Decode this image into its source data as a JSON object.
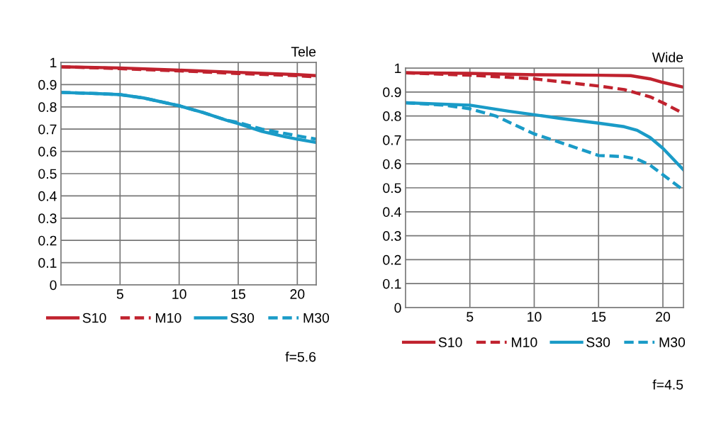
{
  "chart_data": [
    {
      "type": "line",
      "title": "Tele",
      "annotations": [
        "f=5.6"
      ],
      "xlim": [
        0,
        21.6
      ],
      "xticks": [
        5,
        10,
        15,
        20
      ],
      "ylim": [
        0,
        1
      ],
      "yticks": [
        0,
        0.1,
        0.2,
        0.3,
        0.4,
        0.5,
        0.6,
        0.7,
        0.8,
        0.9,
        1
      ],
      "grid": true,
      "legend": "bottom",
      "series": [
        {
          "name": "S10",
          "color": "#c0222e",
          "line_style": "solid",
          "x": [
            0,
            5,
            10,
            15,
            20,
            21.6
          ],
          "values": [
            0.98,
            0.975,
            0.965,
            0.955,
            0.945,
            0.94
          ]
        },
        {
          "name": "M10",
          "color": "#c0222e",
          "line_style": "dashed",
          "x": [
            0,
            5,
            10,
            15,
            20,
            21.6
          ],
          "values": [
            0.98,
            0.972,
            0.962,
            0.95,
            0.94,
            0.935
          ]
        },
        {
          "name": "S30",
          "color": "#1a9bc7",
          "line_style": "solid",
          "x": [
            0,
            3,
            5,
            7,
            10,
            12,
            14,
            15,
            17,
            19,
            20,
            21.6
          ],
          "values": [
            0.865,
            0.86,
            0.855,
            0.84,
            0.805,
            0.775,
            0.74,
            0.725,
            0.69,
            0.665,
            0.655,
            0.64
          ]
        },
        {
          "name": "M30",
          "color": "#1a9bc7",
          "line_style": "dashed",
          "x": [
            0,
            3,
            5,
            7,
            10,
            12,
            14,
            15,
            17,
            19,
            20,
            21.6
          ],
          "values": [
            0.865,
            0.86,
            0.855,
            0.84,
            0.805,
            0.775,
            0.74,
            0.73,
            0.7,
            0.68,
            0.67,
            0.655
          ]
        }
      ]
    },
    {
      "type": "line",
      "title": "Wide",
      "annotations": [
        "f=4.5"
      ],
      "xlim": [
        0,
        21.6
      ],
      "xticks": [
        5,
        10,
        15,
        20
      ],
      "ylim": [
        0,
        1
      ],
      "yticks": [
        0,
        0.1,
        0.2,
        0.3,
        0.4,
        0.5,
        0.6,
        0.7,
        0.8,
        0.9,
        1
      ],
      "grid": true,
      "legend": "bottom",
      "series": [
        {
          "name": "S10",
          "color": "#c0222e",
          "line_style": "solid",
          "x": [
            0,
            5,
            10,
            15,
            17.5,
            19,
            20,
            21.6
          ],
          "values": [
            0.98,
            0.978,
            0.972,
            0.97,
            0.968,
            0.955,
            0.94,
            0.92
          ]
        },
        {
          "name": "M10",
          "color": "#c0222e",
          "line_style": "dashed",
          "x": [
            0,
            5,
            10,
            15,
            17,
            19,
            20,
            21.6
          ],
          "values": [
            0.98,
            0.97,
            0.955,
            0.925,
            0.91,
            0.88,
            0.855,
            0.81
          ]
        },
        {
          "name": "S30",
          "color": "#1a9bc7",
          "line_style": "solid",
          "x": [
            0,
            5,
            8,
            10,
            12,
            15,
            17,
            18,
            19,
            20,
            21.6
          ],
          "values": [
            0.855,
            0.845,
            0.82,
            0.805,
            0.79,
            0.77,
            0.755,
            0.74,
            0.71,
            0.665,
            0.575
          ]
        },
        {
          "name": "M30",
          "color": "#1a9bc7",
          "line_style": "dashed",
          "x": [
            0,
            3,
            5,
            7,
            10,
            12,
            15,
            17,
            18,
            19,
            20,
            21.6
          ],
          "values": [
            0.855,
            0.845,
            0.83,
            0.8,
            0.725,
            0.69,
            0.635,
            0.63,
            0.62,
            0.595,
            0.555,
            0.49
          ]
        }
      ]
    }
  ]
}
